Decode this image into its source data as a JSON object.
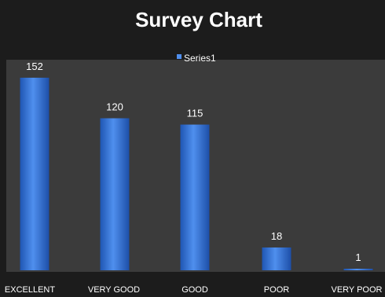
{
  "chart_data": {
    "type": "bar",
    "title": "Survey Chart",
    "categories": [
      "EXCELLENT",
      "VERY GOOD",
      "GOOD",
      "POOR",
      "VERY POOR"
    ],
    "series": [
      {
        "name": "Series1",
        "values": [
          152,
          120,
          115,
          18,
          1
        ]
      }
    ],
    "data_labels": true,
    "legend_position": "top",
    "xlabel": "",
    "ylabel": "",
    "ylim": [
      0,
      160
    ],
    "grid": false
  },
  "colors": {
    "background": "#1c1c1c",
    "plot_area": "#3b3b3b",
    "bar": "#2f6fd6",
    "bar_light": "#5a9af2",
    "text": "#ffffff"
  }
}
